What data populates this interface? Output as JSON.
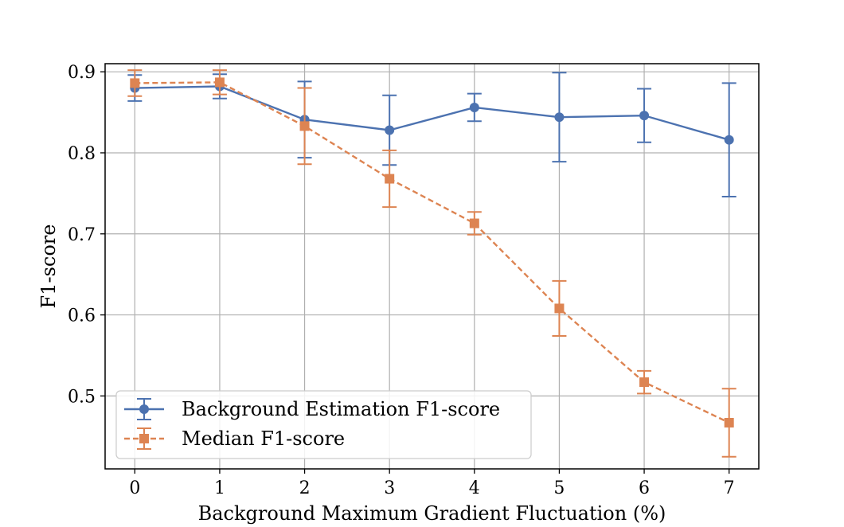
{
  "chart_data": {
    "type": "line",
    "xlabel": "Background Maximum Gradient Fluctuation (%)",
    "ylabel": "F1-score",
    "x": [
      0,
      1,
      2,
      3,
      4,
      5,
      6,
      7
    ],
    "xlim": [
      -0.35,
      7.35
    ],
    "ylim": [
      0.41,
      0.91
    ],
    "xticks": [
      "0",
      "1",
      "2",
      "3",
      "4",
      "5",
      "6",
      "7"
    ],
    "yticks": [
      0.5,
      0.6,
      0.7,
      0.8,
      0.9
    ],
    "ytick_labels": [
      "0.5",
      "0.6",
      "0.7",
      "0.8",
      "0.9"
    ],
    "grid": true,
    "legend_position": "lower-left",
    "series": [
      {
        "name": "Background Estimation F1-score",
        "color": "#4c72b0",
        "marker": "circle",
        "line_style": "solid",
        "values": [
          0.88,
          0.882,
          0.841,
          0.828,
          0.856,
          0.844,
          0.846,
          0.816
        ],
        "error": [
          0.016,
          0.015,
          0.047,
          0.043,
          0.017,
          0.055,
          0.033,
          0.07
        ]
      },
      {
        "name": "Median F1-score",
        "color": "#dd8452",
        "marker": "square",
        "line_style": "dashed",
        "values": [
          0.886,
          0.887,
          0.833,
          0.768,
          0.713,
          0.608,
          0.517,
          0.467
        ],
        "error": [
          0.016,
          0.015,
          0.047,
          0.035,
          0.014,
          0.034,
          0.014,
          0.042
        ]
      }
    ]
  }
}
